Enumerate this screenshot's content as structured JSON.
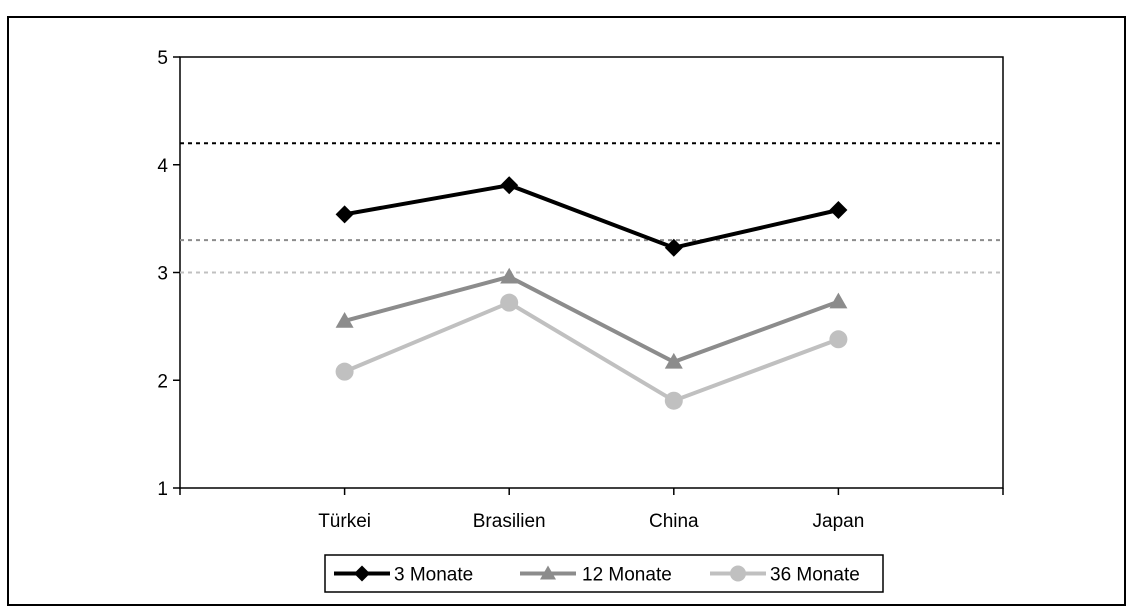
{
  "chart_data": {
    "type": "line",
    "categories": [
      "Türkei",
      "Brasilien",
      "China",
      "Japan"
    ],
    "series": [
      {
        "name": "3 Monate",
        "values": [
          3.54,
          3.81,
          3.23,
          3.58
        ],
        "color": "#000000",
        "marker": "diamond"
      },
      {
        "name": "12 Monate",
        "values": [
          2.55,
          2.96,
          2.17,
          2.73
        ],
        "color": "#8c8c8c",
        "marker": "triangle"
      },
      {
        "name": "36 Monate",
        "values": [
          2.08,
          2.72,
          1.81,
          2.38
        ],
        "color": "#c0c0c0",
        "marker": "circle"
      }
    ],
    "reference_lines": [
      {
        "value": 4.2,
        "color": "#000000"
      },
      {
        "value": 3.3,
        "color": "#8c8c8c"
      },
      {
        "value": 3.0,
        "color": "#c0c0c0"
      }
    ],
    "ylim": [
      1,
      5
    ],
    "yticks": [
      1,
      2,
      3,
      4,
      5
    ],
    "title": "",
    "xlabel": "",
    "ylabel": "",
    "grid": false,
    "legend_position": "bottom-center"
  }
}
